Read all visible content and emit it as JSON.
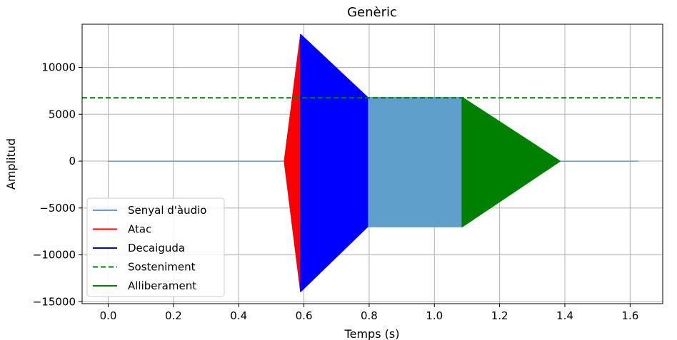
{
  "chart_data": {
    "type": "line",
    "title": "Genèric",
    "xlabel": "Temps (s)",
    "ylabel": "Amplitud",
    "xlim": [
      -0.08,
      1.7
    ],
    "ylim": [
      -15200,
      14600
    ],
    "grid": true,
    "legend_position": "lower-left",
    "x_ticks": [
      0.0,
      0.2,
      0.4,
      0.6,
      0.8,
      1.0,
      1.2,
      1.4,
      1.6
    ],
    "x_tick_labels": [
      "0.0",
      "0.2",
      "0.4",
      "0.6",
      "0.8",
      "1.0",
      "1.2",
      "1.4",
      "1.6"
    ],
    "y_ticks": [
      10000,
      5000,
      0,
      -5000,
      -10000,
      -15000
    ],
    "y_tick_labels": [
      "10000",
      "5000",
      "0",
      "−5000",
      "−10000",
      "−15000"
    ],
    "series": [
      {
        "name": "Senyal d'àudio",
        "color": "#5f9fcc",
        "style": "solid",
        "envelope_x": [
          0.0,
          0.54,
          0.59,
          0.795,
          1.085,
          1.385,
          1.625
        ],
        "envelope_upper": [
          0,
          0,
          13500,
          6800,
          6800,
          0,
          0
        ],
        "envelope_lower": [
          0,
          0,
          -13900,
          -7000,
          -7000,
          0,
          0
        ]
      },
      {
        "name": "Atac",
        "color": "#ff0000",
        "style": "solid",
        "envelope_x": [
          0.54,
          0.59
        ],
        "envelope_upper": [
          0,
          13500
        ],
        "envelope_lower": [
          0,
          -13900
        ]
      },
      {
        "name": "Decaiguda",
        "color": "#0000ff",
        "style": "solid",
        "envelope_x": [
          0.59,
          0.795
        ],
        "envelope_upper": [
          13500,
          6800
        ],
        "envelope_lower": [
          -13900,
          -7000
        ]
      },
      {
        "name": "Sosteniment",
        "color": "#008000",
        "style": "dashed",
        "y": 6750
      },
      {
        "name": "Alliberament",
        "color": "#008000",
        "style": "solid",
        "envelope_x": [
          1.085,
          1.385
        ],
        "envelope_upper": [
          6800,
          0
        ],
        "envelope_lower": [
          -7000,
          0
        ]
      }
    ]
  }
}
